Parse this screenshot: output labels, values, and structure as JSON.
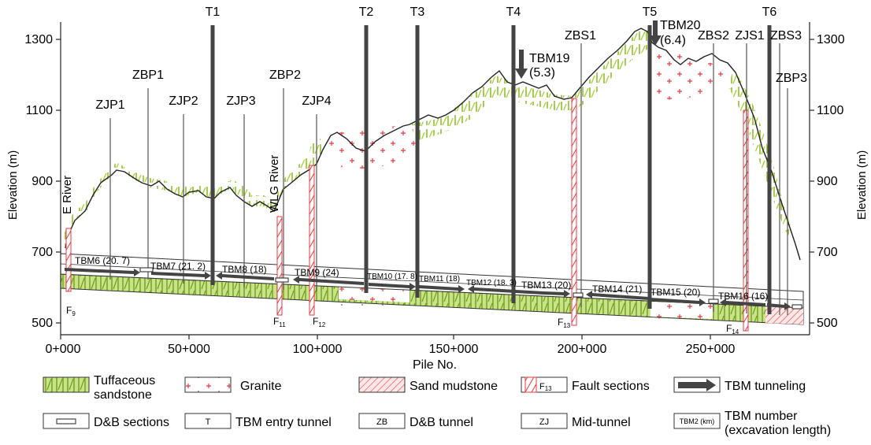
{
  "axes": {
    "y_label_left": "Elevation (m)",
    "y_label_right": "Elevation (m)",
    "x_label": "Pile No.",
    "y_ticks": [
      "500",
      "700",
      "900",
      "1100",
      "1300"
    ],
    "x_ticks": [
      "0+000",
      "50+000",
      "100+000",
      "150+000",
      "200+000",
      "250+000"
    ]
  },
  "rivers": {
    "e_river": "E River",
    "wlg_river": "WLG River"
  },
  "shafts": [
    {
      "label": "ZJP1"
    },
    {
      "label": "ZBP1"
    },
    {
      "label": "ZJP2"
    },
    {
      "label": "T1"
    },
    {
      "label": "ZJP3"
    },
    {
      "label": "ZBP2"
    },
    {
      "label": "ZJP4"
    },
    {
      "label": "T2"
    },
    {
      "label": "T3"
    },
    {
      "label": "T4"
    },
    {
      "label": "ZBS1"
    },
    {
      "label": "T5"
    },
    {
      "label": "ZBS2"
    },
    {
      "label": "ZJS1"
    },
    {
      "label": "T6"
    },
    {
      "label": "ZBS3"
    },
    {
      "label": "ZBP3"
    }
  ],
  "tbm_callouts": [
    {
      "name": "TBM19",
      "length": "(5.3)"
    },
    {
      "name": "TBM20",
      "length": "(6.4)"
    }
  ],
  "tbm_segments": [
    {
      "label": "TBM6 (20. 7)"
    },
    {
      "label": "TBM7 (21. 2)"
    },
    {
      "label": "TBM8 (18)"
    },
    {
      "label": "TBM9 (24)"
    },
    {
      "label": "TBM10 (17. 8)"
    },
    {
      "label": "TBM11 (18)"
    },
    {
      "label": "TBM12 (18. 3)"
    },
    {
      "label": "TBM13 (20)"
    },
    {
      "label": "TBM14 (21)"
    },
    {
      "label": "TBM15 (20)"
    },
    {
      "label": "TBM16 (16)"
    }
  ],
  "faults": [
    {
      "label": "F",
      "sub": "9"
    },
    {
      "label": "F",
      "sub": "11"
    },
    {
      "label": "F",
      "sub": "12"
    },
    {
      "label": "F",
      "sub": "13"
    },
    {
      "label": "F",
      "sub": "14"
    }
  ],
  "legend": {
    "tuff_line1": "Tuffaceous",
    "tuff_line2": "sandstone",
    "granite": "Granite",
    "sand_mudstone": "Sand mudstone",
    "fault_sections": "Fault sections",
    "fault_symbol": "F",
    "fault_symbol_sub": "13",
    "tbm_tunneling": "TBM tunneling",
    "db_sections": "D&B sections",
    "tbm_entry": "TBM entry tunnel",
    "tbm_entry_symbol": "T",
    "db_tunnel": "D&B tunnel",
    "db_tunnel_symbol": "ZB",
    "mid_tunnel": "Mid-tunnel",
    "mid_tunnel_symbol": "ZJ",
    "tbm_number_line1": "TBM number",
    "tbm_number_line2": "(excavation length)",
    "tbm_number_symbol": "TBM2 (km)"
  },
  "colors": {
    "tuff_fill": "#a6d23b",
    "granite": "#e8393f",
    "fault": "#e8393f",
    "mudstone": "#e8393f",
    "line": "#222222"
  }
}
